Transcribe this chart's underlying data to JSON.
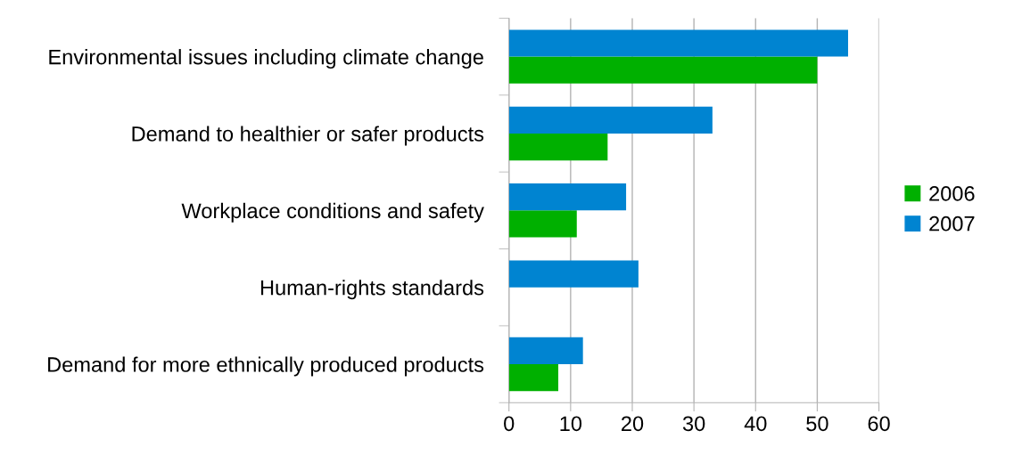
{
  "chart_data": {
    "type": "bar",
    "orientation": "horizontal",
    "categories": [
      "Environmental issues including climate change",
      "Demand to healthier or safer products",
      "Workplace conditions and safety",
      "Human-rights standards",
      "Demand for more ethnically produced products"
    ],
    "series": [
      {
        "name": "2006",
        "color": "#00b000",
        "values": [
          50,
          16,
          11,
          null,
          8
        ]
      },
      {
        "name": "2007",
        "color": "#0084d1",
        "values": [
          55,
          33,
          19,
          21,
          12
        ]
      }
    ],
    "xlim": [
      0,
      60
    ],
    "xticks": [
      0,
      10,
      20,
      30,
      40,
      50,
      60
    ],
    "grid": "x",
    "legend": "right"
  }
}
